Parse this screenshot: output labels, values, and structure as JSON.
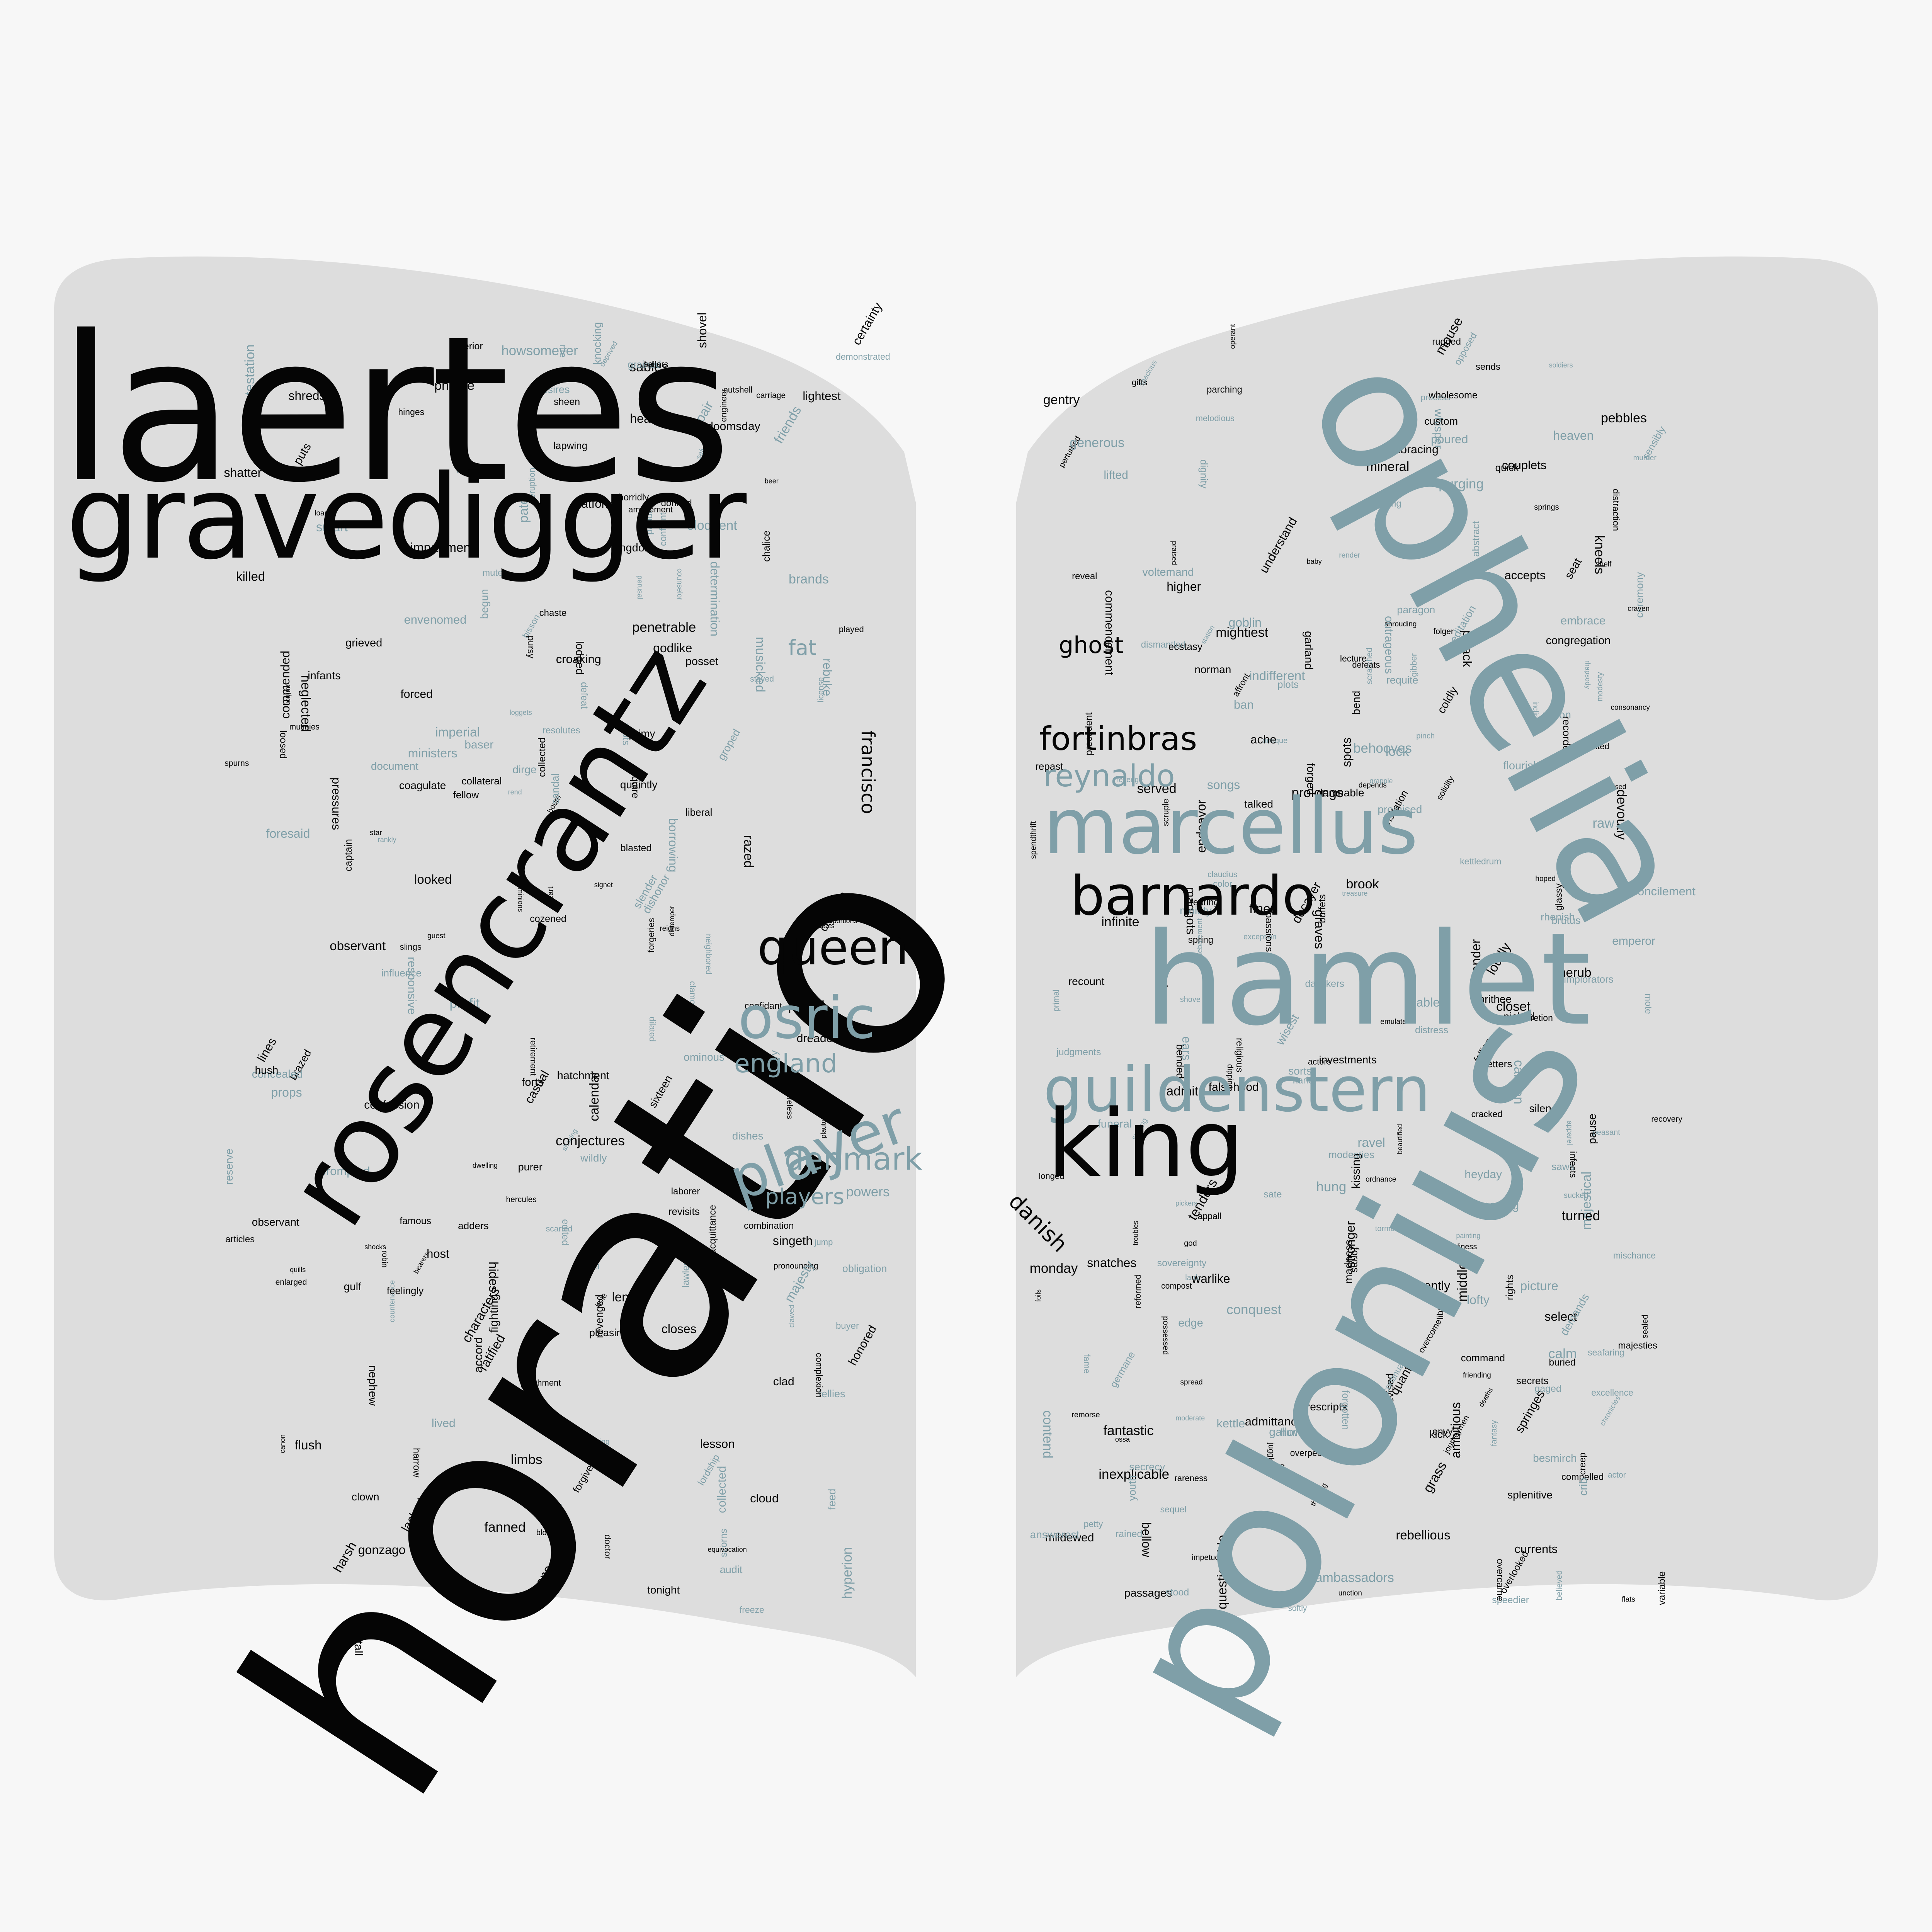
{
  "colors": {
    "background": "#f7f7f7",
    "page": "#dddddd",
    "dark_word": "#050505",
    "teal_word": "#7f9fa8"
  },
  "words": {
    "laertes": "laertes",
    "gravedigger": "gravedigger",
    "rosencrantz": "rosencrantz",
    "horatio": "horatio",
    "queen": "queen",
    "osric": "osric",
    "player": "player",
    "denmark": "denmark",
    "players": "players",
    "francisco": "francisco",
    "ophelia": "ophelia",
    "polonius": "polonius",
    "hamlet": "hamlet",
    "marcellus": "marcellus",
    "barnardo": "barnardo",
    "guildenstern": "guildenstern",
    "king": "king",
    "reynaldo": "reynaldo",
    "fortinbras": "fortinbras",
    "ghost": "ghost",
    "danish": "danish",
    "england": "england",
    "fat": "fat"
  },
  "small_words_left": [
    "shaking",
    "revenged",
    "reigns",
    "powers",
    "paddling",
    "loggets",
    "ministers",
    "kingdom",
    "host",
    "hercules",
    "eloquent",
    "determination",
    "croaking",
    "combination",
    "characters",
    "brazed",
    "borrowing",
    "acquittance",
    "clown",
    "certainty",
    "caught",
    "brands",
    "buyer",
    "fellow",
    "dishonor",
    "wildly",
    "horridly",
    "canon",
    "rite",
    "spurns",
    "puts",
    "countenance",
    "lawless",
    "star",
    "begun",
    "looked",
    "obligation",
    "confidant",
    "chanson",
    "beer",
    "hole",
    "dirge",
    "coagulate",
    "bourn",
    "license",
    "impartment",
    "loam",
    "lived",
    "rend",
    "observant",
    "pair",
    "gulf",
    "dishes",
    "crowing",
    "dwelling",
    "fellies",
    "cozened",
    "forts",
    "desires",
    "exterior",
    "heavily",
    "plautus",
    "neighbored",
    "proportions",
    "robin",
    "signet",
    "pronouncing",
    "resolutes",
    "sables",
    "nutshell",
    "shocks",
    "forgiveness",
    "grieved",
    "scorns",
    "hinges",
    "conjectures",
    "edited",
    "heart",
    "honored",
    "stayed",
    "played",
    "guest",
    "amazement",
    "tonight",
    "quills",
    "pate",
    "killed",
    "closes",
    "articles",
    "accord",
    "cloud",
    "casual",
    "bloat",
    "careless",
    "capons",
    "audit",
    "chalice",
    "concealed",
    "flush",
    "donned",
    "equivocation",
    "dreaded",
    "enlarged",
    "limbs",
    "inquire",
    "infants",
    "level",
    "nephew",
    "lacked",
    "imperial",
    "grained",
    "godlike",
    "length",
    "influence",
    "platform",
    "prompted",
    "neglected",
    "lesson",
    "mutes",
    "reserve",
    "profit",
    "perusal",
    "mutinies",
    "purer",
    "penetrable",
    "motions",
    "knocking",
    "parchment",
    "howsomever",
    "feelingly",
    "fighting",
    "gonzago",
    "laborer",
    "hyperion",
    "distemper",
    "calendar",
    "clamor",
    "bisson",
    "appliance",
    "phrase",
    "bearers",
    "majesty",
    "author",
    "captain",
    "feed",
    "confession",
    "baser",
    "doctor",
    "puffed",
    "friends",
    "adders",
    "chaste",
    "meats",
    "clad",
    "corses",
    "blasted",
    "clawed",
    "commended",
    "counselor",
    "complexion",
    "document",
    "exhort",
    "harrow",
    "hawk",
    "props",
    "lines",
    "lapwing",
    "harsh",
    "dominions",
    "shatter",
    "sailors",
    "revisits",
    "protestation",
    "sheen",
    "roots",
    "jump",
    "freeze",
    "doomsday",
    "envenomed",
    "forced",
    "deprived",
    "eruption",
    "demonstrated",
    "foresaid",
    "collateral",
    "carriage",
    "defeat",
    "collected",
    "famous",
    "hush",
    "groped",
    "fanned",
    "dilated",
    "engineer",
    "pleasing",
    "lightest",
    "liberal",
    "hides",
    "forestall",
    "shovel",
    "shreds",
    "pressures",
    "ratified",
    "sandal",
    "smart",
    "singeth",
    "salvation",
    "posset",
    "slings",
    "slender",
    "sixteen",
    "quaintly",
    "ominous",
    "hatchment",
    "scarfed",
    "razed",
    "lodged",
    "forgeries",
    "rebuke",
    "musicked",
    "loosed",
    "retirement",
    "privy",
    "responsive",
    "pursy",
    "primy",
    "rankly",
    "observant",
    "collected",
    "confront",
    "lordship"
  ],
  "small_words_right": [
    "readiness",
    "reformed",
    "snatches",
    "softly",
    "songs",
    "solidity",
    "ravel",
    "longed",
    "rights",
    "seafaring",
    "sorts",
    "devised",
    "exception",
    "emperor",
    "embracing",
    "devoutly",
    "easier",
    "dismantled",
    "dignity",
    "saws",
    "folger",
    "loudly",
    "majestical",
    "poured",
    "operant",
    "preceding",
    "shrouding",
    "opposed",
    "outrageous",
    "rhapsody",
    "smiling",
    "possessed",
    "mouse",
    "calm",
    "commencement",
    "congregation",
    "contend",
    "continual",
    "dipping",
    "danskers",
    "raw",
    "fame",
    "spacious",
    "kneels",
    "potently",
    "implorators",
    "paragon",
    "maggots",
    "parching",
    "rareness",
    "impetuous",
    "higher",
    "meditation",
    "forms",
    "heyday",
    "painting",
    "spots",
    "rebellious",
    "overcome",
    "goblin",
    "friending",
    "speedier",
    "fantastic",
    "endeavor",
    "glassy",
    "deaths",
    "debatement",
    "discretion",
    "passions",
    "kick",
    "melodious",
    "mote",
    "prescripts",
    "recount",
    "spring",
    "select",
    "shelf",
    "germane",
    "gibber",
    "gaged",
    "hung",
    "middle",
    "springs",
    "remorse",
    "reconcilement",
    "scratched",
    "peasant",
    "juggled",
    "norman",
    "pelion",
    "lecture",
    "sequel",
    "primal",
    "fearing",
    "drains",
    "compelled",
    "distress",
    "cracked",
    "brook",
    "coldly",
    "quick",
    "behooves",
    "chronicles",
    "conquest",
    "brutus",
    "bellow",
    "closet",
    "scruple",
    "prithee",
    "recovery",
    "spread",
    "splenitive",
    "spendthrift",
    "render",
    "perturbed",
    "pause",
    "repast",
    "kissing",
    "passages",
    "requite",
    "sovereignty",
    "springes",
    "overpeering",
    "decayer",
    "lank",
    "hoped",
    "grass",
    "mightiest",
    "process",
    "pebbles",
    "lifted",
    "reveal",
    "overcame",
    "precedent",
    "mildewed",
    "religious",
    "secrets",
    "served",
    "sensibly",
    "questionable",
    "picture",
    "recorder",
    "sate",
    "pinch",
    "honeying",
    "mischance",
    "harlot",
    "hunts",
    "lofty",
    "modesties",
    "prolongs",
    "moderate",
    "rained",
    "shove",
    "seat",
    "moiety",
    "gifts",
    "flats",
    "mortised",
    "pickers",
    "overlooked",
    "kettledrum",
    "journeymen",
    "distraction",
    "fines",
    "defeats",
    "fetters",
    "encorpsed",
    "compost",
    "consonancy",
    "depends",
    "forgotten",
    "generous",
    "investments",
    "inexplicable",
    "petty",
    "mineral",
    "garland",
    "emulate",
    "wholesome",
    "monday",
    "abstract",
    "apparel",
    "command",
    "revenge",
    "color",
    "unction",
    "warlike",
    "modesty",
    "treasure",
    "thinking",
    "madness",
    "funeral",
    "purging",
    "wonted",
    "indifferent",
    "polack",
    "troubles",
    "station",
    "antique",
    "ache",
    "sable",
    "tenders",
    "grapple",
    "soldiers",
    "flourish",
    "demands",
    "secrecy",
    "cannon",
    "buried",
    "understand",
    "believed",
    "bended",
    "alexander",
    "actor",
    "actors",
    "ordnance",
    "stood",
    "affront",
    "claudius",
    "silence",
    "lock",
    "picked",
    "voltemand",
    "infinite",
    "ambitious",
    "inclination",
    "sends",
    "ecstasy",
    "falling",
    "god",
    "baby",
    "envy",
    "whisper",
    "edge",
    "ban",
    "bend",
    "majesties",
    "youth",
    "judgments",
    "ceremony",
    "foils",
    "variable",
    "stronger",
    "sealed",
    "praised",
    "ears",
    "kettle",
    "excellence",
    "quantity",
    "promised",
    "gallows",
    "forged",
    "graves",
    "visitation",
    "rugged",
    "plots",
    "sucked",
    "fantasy",
    "custom",
    "beautified",
    "answerest",
    "ambassadors",
    "talked",
    "currents",
    "accepts",
    "cherub",
    "beasts",
    "creep",
    "damnable",
    "murder",
    "admit",
    "rhenish",
    "appall",
    "turned",
    "wisest",
    "craven",
    "admittance",
    "embrace",
    "falsehood",
    "gentry",
    "ossa",
    "library",
    "infects",
    "couplets",
    "besmirch",
    "crib",
    "buffets",
    "heaven",
    "tormenting"
  ],
  "page_credits": "folger"
}
